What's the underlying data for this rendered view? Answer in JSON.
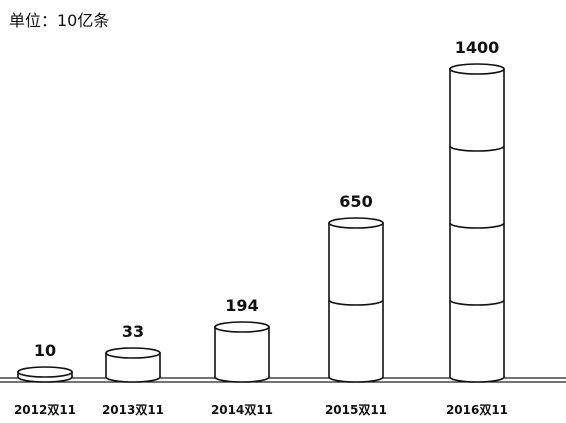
{
  "chart_data": {
    "type": "bar",
    "style": "stacked-cylinders",
    "unit_label": "单位：10亿条",
    "categories": [
      "2012双11",
      "2013双11",
      "2014双11",
      "2015双11",
      "2016双11"
    ],
    "values": [
      10,
      33,
      194,
      650,
      1400
    ],
    "value_labels": [
      "10",
      "33",
      "194",
      "650",
      "1400"
    ],
    "cylinder_segments": [
      1,
      1,
      1,
      2,
      4
    ],
    "title": "",
    "xlabel": "",
    "ylabel": "",
    "grid": false,
    "legend": "none"
  }
}
